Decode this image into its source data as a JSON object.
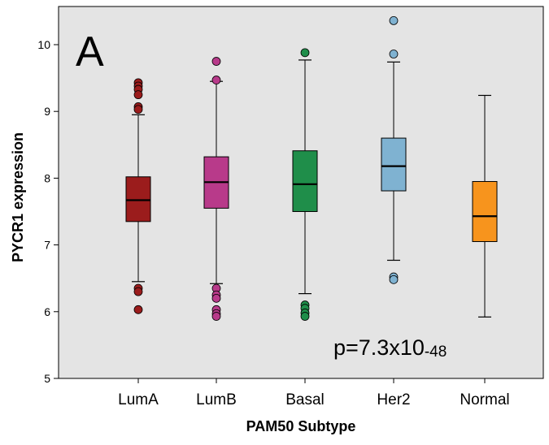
{
  "chart_data": {
    "type": "boxplot",
    "panel_letter": "A",
    "xlabel": "PAM50 Subtype",
    "ylabel": "PYCR1 expression",
    "ylim": [
      5,
      10.6
    ],
    "yticks": [
      "5",
      "6",
      "7",
      "8",
      "9",
      "10"
    ],
    "grid": false,
    "annotation": {
      "base": "p=7.3x10",
      "exponent": "-48"
    },
    "categories": [
      "LumA",
      "LumB",
      "Basal",
      "Her2",
      "Normal"
    ],
    "boxes": [
      {
        "name": "LumA",
        "color": "#9B1C1C",
        "whisker_low": 6.45,
        "q1": 7.35,
        "median": 7.67,
        "q3": 8.02,
        "whisker_high": 8.95,
        "outliers": [
          9.43,
          9.38,
          9.33,
          9.25,
          9.07,
          9.03,
          6.35,
          6.3,
          6.03
        ]
      },
      {
        "name": "LumB",
        "color": "#B83A8A",
        "whisker_low": 6.42,
        "q1": 7.55,
        "median": 7.94,
        "q3": 8.32,
        "whisker_high": 9.45,
        "outliers": [
          9.75,
          9.47,
          6.35,
          6.25,
          6.2,
          6.03,
          5.97,
          5.93
        ]
      },
      {
        "name": "Basal",
        "color": "#1F8E4A",
        "whisker_low": 6.27,
        "q1": 7.5,
        "median": 7.91,
        "q3": 8.41,
        "whisker_high": 9.77,
        "outliers": [
          9.88,
          6.1,
          6.05,
          5.98,
          5.93
        ]
      },
      {
        "name": "Her2",
        "color": "#7FB2D1",
        "whisker_low": 6.77,
        "q1": 7.81,
        "median": 8.18,
        "q3": 8.6,
        "whisker_high": 9.74,
        "outliers": [
          10.36,
          9.86,
          6.52,
          6.48
        ]
      },
      {
        "name": "Normal",
        "color": "#F7941D",
        "whisker_low": 5.92,
        "q1": 7.05,
        "median": 7.43,
        "q3": 7.95,
        "whisker_high": 9.24,
        "outliers": []
      }
    ]
  }
}
